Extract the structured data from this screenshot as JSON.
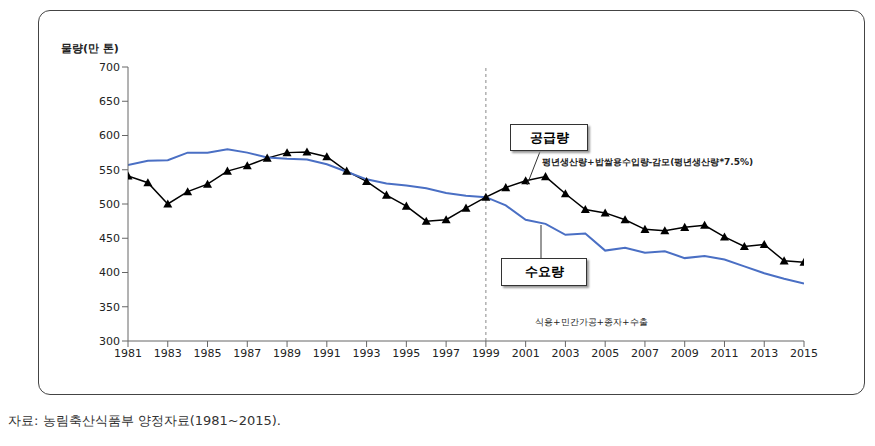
{
  "chart_data": {
    "type": "line",
    "y_label": "물량(만 톤)",
    "x": [
      1981,
      1982,
      1983,
      1984,
      1985,
      1986,
      1987,
      1988,
      1989,
      1990,
      1991,
      1992,
      1993,
      1994,
      1995,
      1996,
      1997,
      1998,
      1999,
      2000,
      2001,
      2002,
      2003,
      2004,
      2005,
      2006,
      2007,
      2008,
      2009,
      2010,
      2011,
      2012,
      2013,
      2014,
      2015
    ],
    "series": [
      {
        "name": "공급량",
        "color": "#000000",
        "marker": "triangle",
        "values": [
          541,
          531,
          500,
          518,
          529,
          548,
          556,
          567,
          575,
          576,
          569,
          548,
          533,
          513,
          497,
          475,
          477,
          494,
          510,
          524,
          534,
          540,
          515,
          492,
          487,
          477,
          463,
          461,
          466,
          469,
          452,
          438,
          441,
          417,
          415
        ]
      },
      {
        "name": "수요량",
        "color": "#4a6fc4",
        "values": [
          557,
          563,
          564,
          575,
          575,
          580,
          575,
          568,
          566,
          565,
          558,
          547,
          536,
          530,
          527,
          523,
          516,
          512,
          510,
          498,
          477,
          471,
          455,
          457,
          432,
          436,
          429,
          431,
          421,
          424,
          419,
          409,
          399,
          391,
          384
        ]
      }
    ],
    "annotations": [
      {
        "series": "공급량",
        "note": "평년생산량+밥쌀용수입량-감모(평년생산량*7.5%)"
      },
      {
        "series": "수요량",
        "note": "식용+민간가공+종자+수출"
      }
    ],
    "xlim": [
      1981,
      2015
    ],
    "xticks": [
      1981,
      1983,
      1985,
      1987,
      1989,
      1991,
      1993,
      1995,
      1997,
      1999,
      2001,
      2003,
      2005,
      2007,
      2009,
      2011,
      2013,
      2015
    ],
    "ylim": [
      300,
      700
    ],
    "yticks": [
      300,
      350,
      400,
      450,
      500,
      550,
      600,
      650,
      700
    ],
    "grid": false,
    "divider_x": 1999,
    "source": "자료: 농림축산식품부 양정자료(1981~2015)."
  }
}
